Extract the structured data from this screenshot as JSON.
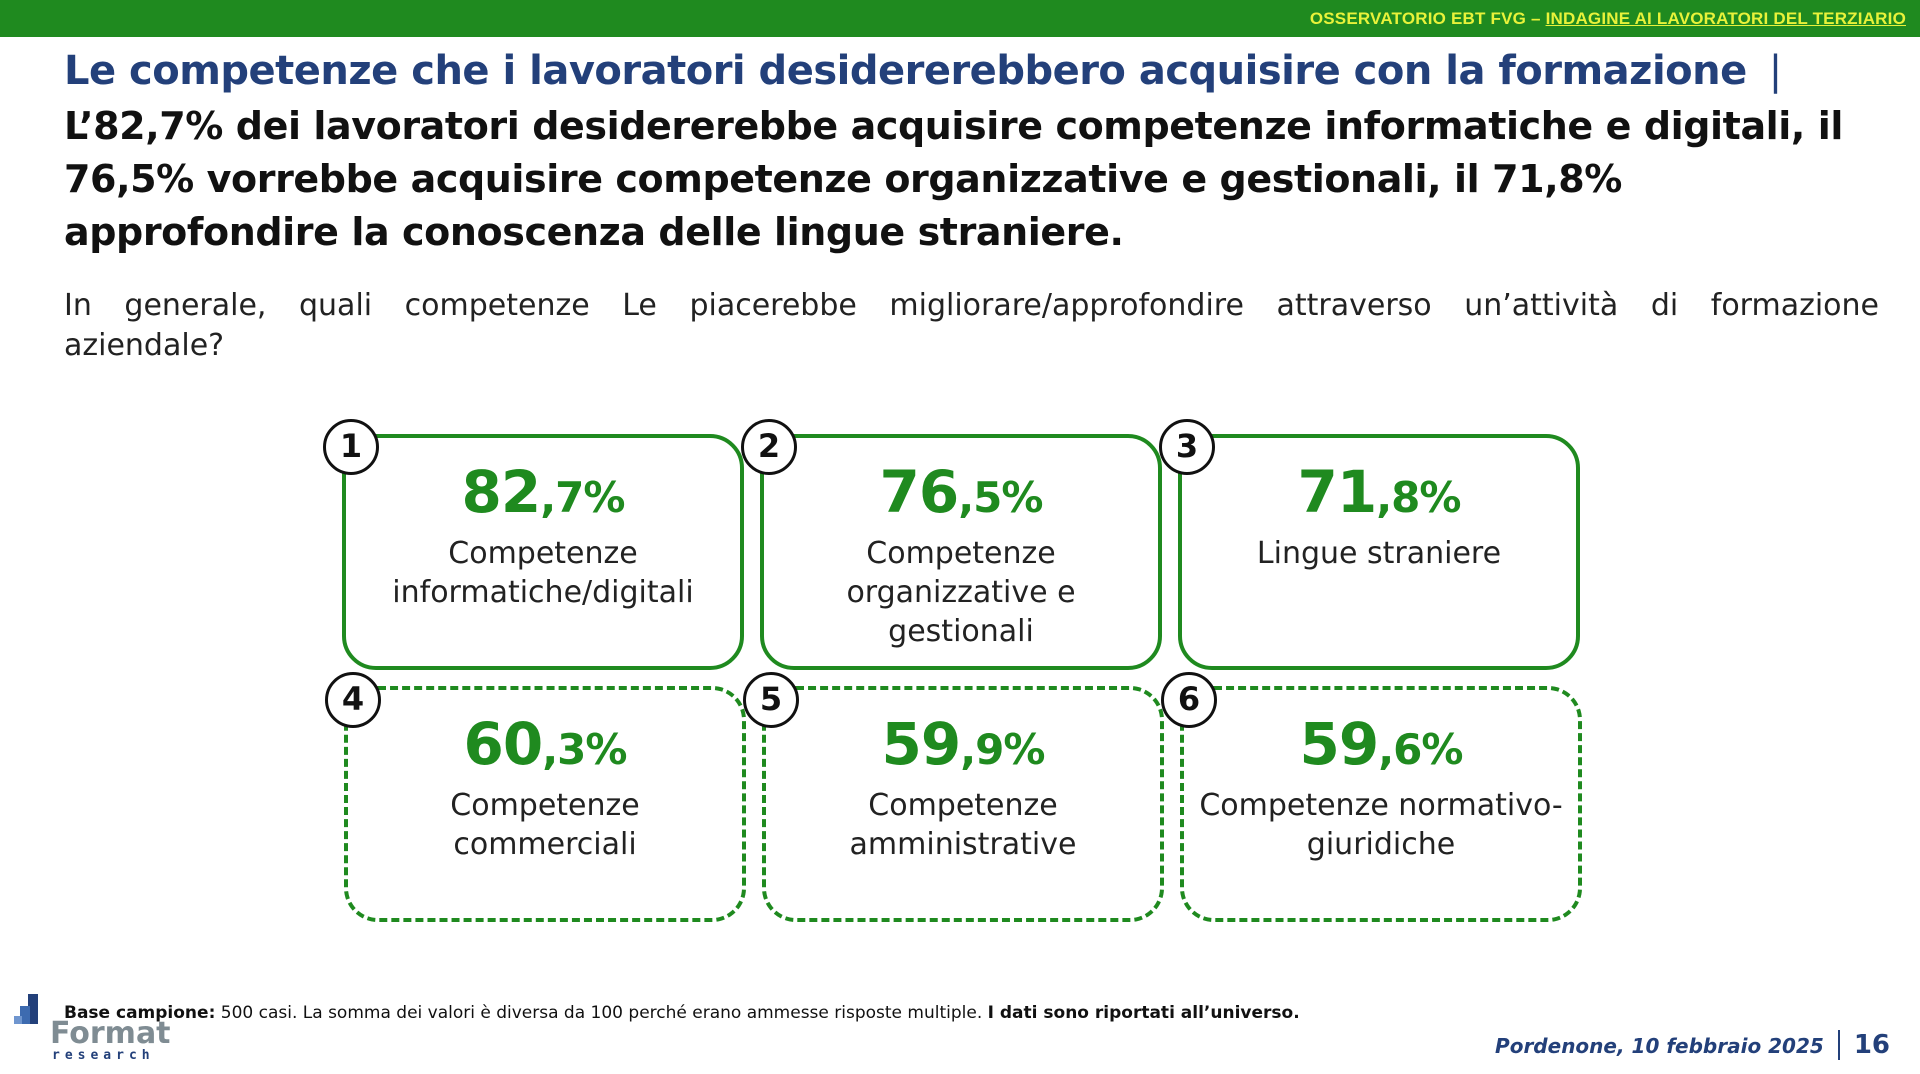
{
  "header": {
    "brand_prefix": "OSSERVATORIO EBT FVG – ",
    "brand_link": "INDAGINE AI LAVORATORI DEL TERZIARIO"
  },
  "title": {
    "main": "Le competenze che i lavoratori desidererebbero acquisire con la formazione",
    "separator": "|"
  },
  "headline": "L’82,7% dei lavoratori desidererebbe acquisire competenze informatiche e digitali, il 76,5% vorrebbe acquisire competenze organizzative e gestionali, il 71,8% approfondire la conoscenza delle lingue straniere.",
  "question": "In generale, quali competenze Le piacerebbe migliorare/approfondire attraverso un’attività di formazione aziendale?",
  "cards": [
    {
      "rank": "1",
      "int": "82",
      "dec": ",7%",
      "label": "Competenze informatiche/digitali"
    },
    {
      "rank": "2",
      "int": "76",
      "dec": ",5%",
      "label": "Competenze organizzative e gestionali"
    },
    {
      "rank": "3",
      "int": "71",
      "dec": ",8%",
      "label": "Lingue straniere"
    },
    {
      "rank": "4",
      "int": "60",
      "dec": ",3%",
      "label": "Competenze commerciali"
    },
    {
      "rank": "5",
      "int": "59",
      "dec": ",9%",
      "label": "Competenze amministrative"
    },
    {
      "rank": "6",
      "int": "59",
      "dec": ",6%",
      "label": "Competenze normativo-giuridiche"
    }
  ],
  "footer": {
    "base_bold": "Base campione:",
    "base_text": " 500 casi. La somma dei valori è diversa da 100 perché erano ammesse risposte multiple. ",
    "base_bold2": "I dati sono riportati all’universo.",
    "logo_word": "Format",
    "logo_sub": "research",
    "date": "Pordenone, 10 febbraio 2025",
    "page": "16"
  },
  "colors": {
    "green": "#1f8a1f",
    "navy": "#23407a",
    "yellow": "#e8f23a"
  }
}
